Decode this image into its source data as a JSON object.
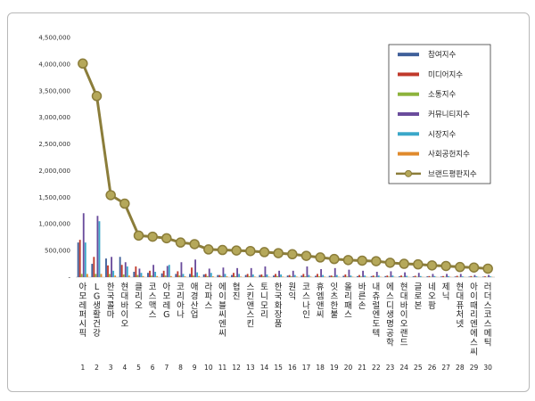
{
  "chart_data": {
    "type": "bar",
    "title": "",
    "xlabel": "",
    "ylabel": "",
    "ylim": [
      0,
      4500000
    ],
    "yticks": [
      0,
      500000,
      1000000,
      1500000,
      2000000,
      2500000,
      3000000,
      3500000,
      4000000,
      4500000
    ],
    "ytick_labels": [
      "-",
      "500,000",
      "1,000,000",
      "1,500,000",
      "2,000,000",
      "2,500,000",
      "3,000,000",
      "3,500,000",
      "4,000,000",
      "4,500,000"
    ],
    "grid": false,
    "legend_position": "top-right",
    "index_labels": [
      "1",
      "2",
      "3",
      "4",
      "5",
      "6",
      "7",
      "8",
      "9",
      "10",
      "11",
      "12",
      "13",
      "14",
      "15",
      "16",
      "17",
      "18",
      "19",
      "20",
      "21",
      "22",
      "23",
      "24",
      "25",
      "26",
      "27",
      "28",
      "29",
      "30"
    ],
    "categories": [
      "아모레퍼시픽",
      "LG생활건강",
      "한국콜마",
      "현대바이오",
      "클리오",
      "코스맥스",
      "아모레G",
      "코리아나",
      "애경산업",
      "라파스",
      "에이블씨엔씨",
      "협진",
      "스킨앤스킨",
      "토니모리",
      "한국화장품",
      "원익",
      "코스나인",
      "휴엠앤씨",
      "잇츠한불",
      "올리패스",
      "바른손",
      "내츄럴엔도텍",
      "에스디생명공학",
      "현대바이오랜드",
      "글로본",
      "네오팜",
      "제닉",
      "현대퓨처넷",
      "아이때리엔에스씨",
      "러더스코스메틱"
    ],
    "series": [
      {
        "name": "참여지수",
        "color": "#3f5f9a",
        "values": [
          650000,
          250000,
          350000,
          380000,
          100000,
          80000,
          70000,
          60000,
          60000,
          50000,
          40000,
          40000,
          40000,
          40000,
          30000,
          30000,
          30000,
          25000,
          25000,
          25000,
          20000,
          20000,
          20000,
          15000,
          15000,
          15000,
          12000,
          12000,
          10000,
          10000
        ]
      },
      {
        "name": "미디어지수",
        "color": "#c0392b",
        "values": [
          700000,
          380000,
          220000,
          230000,
          200000,
          120000,
          120000,
          110000,
          180000,
          60000,
          40000,
          80000,
          60000,
          50000,
          60000,
          40000,
          60000,
          60000,
          30000,
          50000,
          40000,
          30000,
          30000,
          30000,
          25000,
          20000,
          20000,
          25000,
          20000,
          15000
        ]
      },
      {
        "name": "소통지수",
        "color": "#8db33c",
        "values": [
          60000,
          60000,
          60000,
          50000,
          40000,
          30000,
          30000,
          30000,
          30000,
          20000,
          20000,
          20000,
          20000,
          20000,
          20000,
          15000,
          15000,
          15000,
          15000,
          12000,
          12000,
          10000,
          10000,
          10000,
          8000,
          8000,
          8000,
          6000,
          6000,
          5000
        ]
      },
      {
        "name": "커뮤니티지수",
        "color": "#6a4c9c",
        "values": [
          1200000,
          1150000,
          380000,
          280000,
          160000,
          230000,
          210000,
          280000,
          330000,
          160000,
          180000,
          170000,
          170000,
          200000,
          120000,
          120000,
          200000,
          150000,
          170000,
          140000,
          120000,
          100000,
          110000,
          90000,
          80000,
          60000,
          60000,
          60000,
          40000,
          40000
        ]
      },
      {
        "name": "시장지수",
        "color": "#3aa7c9",
        "values": [
          650000,
          1050000,
          120000,
          200000,
          80000,
          100000,
          230000,
          60000,
          90000,
          80000,
          60000,
          60000,
          50000,
          50000,
          50000,
          40000,
          40000,
          40000,
          40000,
          30000,
          30000,
          30000,
          30000,
          25000,
          20000,
          20000,
          20000,
          15000,
          15000,
          15000
        ]
      },
      {
        "name": "사회공헌지수",
        "color": "#e08a2c",
        "values": [
          60000,
          60000,
          30000,
          30000,
          20000,
          20000,
          20000,
          15000,
          20000,
          15000,
          15000,
          10000,
          10000,
          10000,
          10000,
          10000,
          10000,
          10000,
          8000,
          8000,
          8000,
          6000,
          6000,
          6000,
          5000,
          5000,
          5000,
          4000,
          4000,
          4000
        ]
      },
      {
        "name": "브랜드평판지수",
        "color": "#8b7d3a",
        "values": [
          4010000,
          3400000,
          1540000,
          1380000,
          780000,
          760000,
          730000,
          650000,
          620000,
          520000,
          510000,
          500000,
          490000,
          470000,
          450000,
          430000,
          400000,
          370000,
          340000,
          320000,
          310000,
          300000,
          270000,
          250000,
          240000,
          220000,
          210000,
          190000,
          180000,
          160000
        ]
      }
    ]
  }
}
